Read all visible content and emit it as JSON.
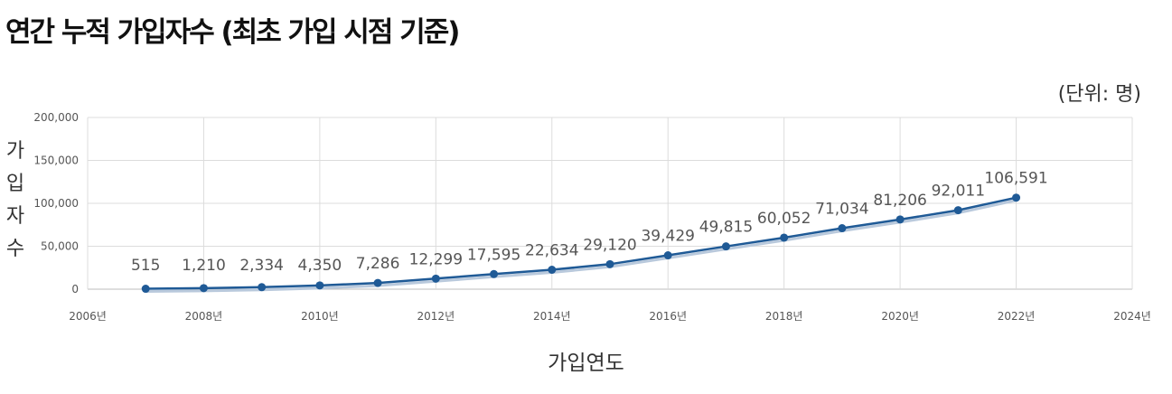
{
  "chart_data": {
    "type": "line",
    "title": "연간 누적 가입자수 (최초 가입 시점 기준)",
    "unit_note": "(단위: 명)",
    "ylabel": "가입자수",
    "xlabel": "가입연도",
    "x_ticks": [
      "2006년",
      "2008년",
      "2010년",
      "2012년",
      "2014년",
      "2016년",
      "2018년",
      "2020년",
      "2022년",
      "2024년"
    ],
    "y_ticks": [
      "0",
      "50,000",
      "100,000",
      "150,000",
      "200,000"
    ],
    "xlim": [
      2006,
      2024
    ],
    "ylim": [
      0,
      200000
    ],
    "grid": true,
    "line_color": "#1f5a96",
    "series": [
      {
        "x": [
          2007,
          2008,
          2009,
          2010,
          2011,
          2012,
          2013,
          2014,
          2015,
          2016,
          2017,
          2018,
          2019,
          2020,
          2021,
          2022
        ],
        "values": [
          515,
          1210,
          2334,
          4350,
          7286,
          12299,
          17595,
          22634,
          29120,
          39429,
          49815,
          60052,
          71034,
          81206,
          92011,
          106591
        ],
        "labels": [
          "515",
          "1,210",
          "2,334",
          "4,350",
          "7,286",
          "12,299",
          "17,595",
          "22,634",
          "29,120",
          "39,429",
          "49,815",
          "60,052",
          "71,034",
          "81,206",
          "92,011",
          "106,591"
        ]
      }
    ]
  }
}
